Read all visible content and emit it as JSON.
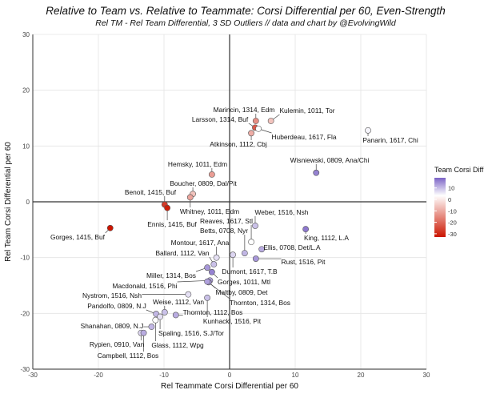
{
  "chart_data": {
    "type": "scatter",
    "title": "Relative to Team vs. Relative to Teammate: Corsi Differential per 60, Even-Strength",
    "subtitle": "Rel TM - Rel Team Differential, 3 SD Outliers  //  data and chart by @EvolvingWild",
    "xlabel": "Rel Teammate Corsi Differential per 60",
    "ylabel": "Rel Team Corsi Differential per 60",
    "xlim": [
      -30,
      30
    ],
    "ylim": [
      -30,
      30
    ],
    "xticks": [
      -30,
      -20,
      -10,
      0,
      10,
      20,
      30
    ],
    "yticks": [
      -30,
      -20,
      -10,
      0,
      10,
      20,
      30
    ],
    "grid": true,
    "legend": {
      "title": "Team Corsi Diff",
      "position": "right",
      "ticks": [
        10,
        0,
        -10,
        -20,
        -30
      ],
      "colors": {
        "high": "#7b63c6",
        "mid": "#ffffff",
        "low": "#cc1500"
      }
    },
    "points": [
      {
        "label": "Marincin, 1314, Edm",
        "x": 4.0,
        "y": 14.5,
        "team_diff": -15
      },
      {
        "label": "Kulemin, 1011, Tor",
        "x": 6.3,
        "y": 14.5,
        "team_diff": -8
      },
      {
        "label": "Larsson, 1314, Buf",
        "x": 3.9,
        "y": 13.3,
        "team_diff": -22
      },
      {
        "label": "Huberdeau, 1617, Fla",
        "x": 4.4,
        "y": 13.1,
        "team_diff": 0
      },
      {
        "label": "Atkinson, 1112, Cbj",
        "x": 3.3,
        "y": 12.3,
        "team_diff": -11
      },
      {
        "label": "Panarin, 1617, Chi",
        "x": 21.1,
        "y": 12.8,
        "team_diff": 1
      },
      {
        "label": "Wisniewski, 0809, Ana/Chi",
        "x": 13.2,
        "y": 5.2,
        "team_diff": 12
      },
      {
        "label": "Hemsky, 1011, Edm",
        "x": -2.7,
        "y": 4.9,
        "team_diff": -13
      },
      {
        "label": "Boucher, 0809, Dal/Pit",
        "x": -5.6,
        "y": 1.4,
        "team_diff": -8
      },
      {
        "label": "Whitney, 1011, Edm",
        "x": -6.0,
        "y": 0.8,
        "team_diff": -12
      },
      {
        "label": "Benoit, 1415, Buf",
        "x": -9.9,
        "y": -0.5,
        "team_diff": -26
      },
      {
        "label": "Ennis, 1415, Buf",
        "x": -9.5,
        "y": -1.1,
        "team_diff": -30
      },
      {
        "label": "Gorges, 1415, Buf",
        "x": -18.2,
        "y": -4.7,
        "team_diff": -31
      },
      {
        "label": "King, 1112, L.A",
        "x": 11.6,
        "y": -4.9,
        "team_diff": 13
      },
      {
        "label": "Weber, 1516, Nsh",
        "x": 3.9,
        "y": -4.3,
        "team_diff": 6
      },
      {
        "label": "Reaves, 1617, Stl",
        "x": 3.3,
        "y": -7.2,
        "team_diff": 0
      },
      {
        "label": "Betts, 0708, Nyr",
        "x": 2.3,
        "y": -9.2,
        "team_diff": 7
      },
      {
        "label": "Ellis, 0708, Det/L.A",
        "x": 4.9,
        "y": -8.5,
        "team_diff": 8
      },
      {
        "label": "Rust, 1516, Pit",
        "x": 4.0,
        "y": -10.2,
        "team_diff": 10
      },
      {
        "label": "Montour, 1617, Ana",
        "x": -2.0,
        "y": -10.0,
        "team_diff": 3
      },
      {
        "label": "Dumont, 1617, T.B",
        "x": 0.5,
        "y": -9.5,
        "team_diff": 4
      },
      {
        "label": "Ballard, 1112, Van",
        "x": -2.4,
        "y": -11.2,
        "team_diff": 6
      },
      {
        "label": "Miller, 1314, Bos",
        "x": -3.4,
        "y": -11.8,
        "team_diff": 10
      },
      {
        "label": "Gorges, 1011, Mtl",
        "x": -2.7,
        "y": -12.6,
        "team_diff": 12
      },
      {
        "label": "Macdonald, 1516, Phi",
        "x": -3.0,
        "y": -14.1,
        "team_diff": 9
      },
      {
        "label": "Maltby, 0809, Det",
        "x": -3.2,
        "y": -14.4,
        "team_diff": 10
      },
      {
        "label": "Nystrom, 1516, Nsh",
        "x": -6.3,
        "y": -16.6,
        "team_diff": 3
      },
      {
        "label": "Thornton, 1314, Bos",
        "x": -3.4,
        "y": -14.3,
        "team_diff": 9
      },
      {
        "label": "Kunhackl, 1516, Pit",
        "x": -3.4,
        "y": -17.2,
        "team_diff": 6
      },
      {
        "label": "Weise, 1112, Van",
        "x": -9.9,
        "y": -19.8,
        "team_diff": 6
      },
      {
        "label": "Pandolfo, 0809, N.J",
        "x": -11.2,
        "y": -20.1,
        "team_diff": 7
      },
      {
        "label": "Spaling, 1516, S.J/Tor",
        "x": -10.6,
        "y": -20.6,
        "team_diff": 3
      },
      {
        "label": "Thornton, 1112, Bos",
        "x": -8.2,
        "y": -20.3,
        "team_diff": 8
      },
      {
        "label": "Glass, 1112, Wpg",
        "x": -11.3,
        "y": -21.2,
        "team_diff": 0
      },
      {
        "label": "Shanahan, 0809, N.J",
        "x": -11.9,
        "y": -22.4,
        "team_diff": 7
      },
      {
        "label": "Rypien, 0910, Van",
        "x": -13.5,
        "y": -23.5,
        "team_diff": 4
      },
      {
        "label": "Campbell, 1112, Bos",
        "x": -13.1,
        "y": -23.5,
        "team_diff": 8
      }
    ]
  }
}
